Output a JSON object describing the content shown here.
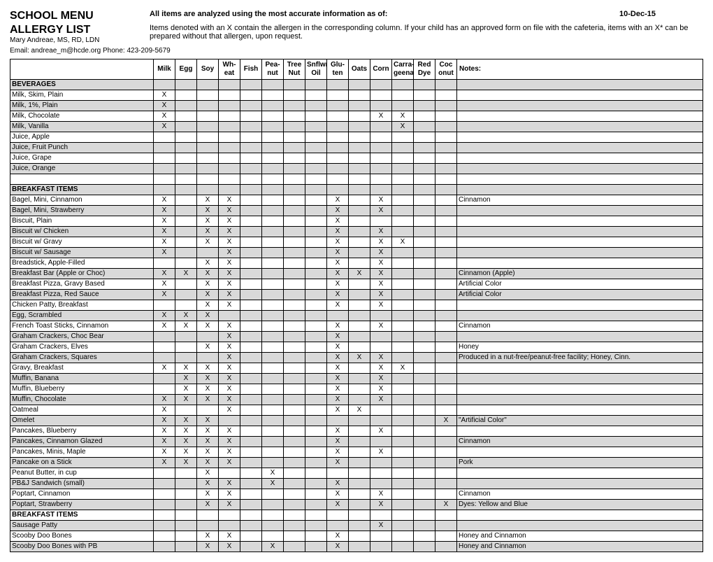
{
  "header": {
    "title1": "SCHOOL MENU",
    "title2": "ALLERGY LIST",
    "info_label": "All items are analyzed using the most accurate information as of:",
    "info_date": "10-Dec-15",
    "info_detail": "Items denoted with an X contain the allergen in the corresponding column. If your child has an approved form on file with the cafeteria, items with an X* can be prepared without that allergen, upon request.",
    "contact": "Mary Andreae, MS, RD, LDN",
    "email": "Email: andreae_m@hcde.org Phone: 423-209-5679"
  },
  "columns": [
    "Milk",
    "Egg",
    "Soy",
    "Wh-\neat",
    "Fish",
    "Pea-\nnut",
    "Tree\nNut",
    "Snflwr\nOil",
    "Glu-\nten",
    "Oats",
    "Corn",
    "Carra-\ngeenan",
    "Red\nDye",
    "Coc\nonut",
    "Notes:"
  ],
  "rows": [
    {
      "type": "section",
      "shaded": true,
      "name": "BEVERAGES"
    },
    {
      "shaded": false,
      "name": "Milk, Skim, Plain",
      "x": {
        "0": "X"
      }
    },
    {
      "shaded": true,
      "name": "Milk, 1%, Plain",
      "x": {
        "0": "X"
      }
    },
    {
      "shaded": false,
      "name": "Milk, Chocolate",
      "x": {
        "0": "X",
        "10": "X",
        "11": "X"
      }
    },
    {
      "shaded": true,
      "name": "Milk, Vanilla",
      "x": {
        "0": "X",
        "11": "X"
      }
    },
    {
      "shaded": false,
      "name": "Juice, Apple"
    },
    {
      "shaded": true,
      "name": "Juice, Fruit Punch"
    },
    {
      "shaded": false,
      "name": "Juice, Grape"
    },
    {
      "shaded": true,
      "name": "Juice, Orange"
    },
    {
      "shaded": false,
      "name": ""
    },
    {
      "type": "section",
      "shaded": true,
      "name": "BREAKFAST ITEMS"
    },
    {
      "shaded": false,
      "name": "Bagel, Mini, Cinnamon",
      "x": {
        "0": "X",
        "2": "X",
        "3": "X",
        "8": "X",
        "10": "X"
      },
      "notes": "Cinnamon"
    },
    {
      "shaded": true,
      "name": "Bagel, Mini, Strawberry",
      "x": {
        "0": "X",
        "2": "X",
        "3": "X",
        "8": "X",
        "10": "X"
      }
    },
    {
      "shaded": false,
      "name": "Biscuit, Plain",
      "x": {
        "0": "X",
        "2": "X",
        "3": "X",
        "8": "X"
      }
    },
    {
      "shaded": true,
      "name": "Biscuit w/ Chicken",
      "x": {
        "0": "X",
        "2": "X",
        "3": "X",
        "8": "X",
        "10": "X"
      }
    },
    {
      "shaded": false,
      "name": "Biscuit w/ Gravy",
      "x": {
        "0": "X",
        "2": "X",
        "3": "X",
        "8": "X",
        "10": "X",
        "11": "X"
      }
    },
    {
      "shaded": true,
      "name": "Biscuit w/ Sausage",
      "x": {
        "0": "X",
        "3": "X",
        "8": "X",
        "10": "X"
      }
    },
    {
      "shaded": false,
      "name": "Breadstick, Apple-Filled",
      "x": {
        "2": "X",
        "3": "X",
        "8": "X",
        "10": "X"
      }
    },
    {
      "shaded": true,
      "name": "Breakfast Bar (Apple or Choc)",
      "x": {
        "0": "X",
        "1": "X",
        "2": "X",
        "3": "X",
        "8": "X",
        "9": "X",
        "10": "X"
      },
      "notes": "Cinnamon (Apple)"
    },
    {
      "shaded": false,
      "name": "Breakfast Pizza, Gravy Based",
      "x": {
        "0": "X",
        "2": "X",
        "3": "X",
        "8": "X",
        "10": "X"
      },
      "notes": "Artificial Color"
    },
    {
      "shaded": true,
      "name": "Breakfast Pizza, Red Sauce",
      "x": {
        "0": "X",
        "2": "X",
        "3": "X",
        "8": "X",
        "10": "X"
      },
      "notes": "Artificial Color"
    },
    {
      "shaded": false,
      "name": "Chicken Patty, Breakfast",
      "x": {
        "2": "X",
        "3": "X",
        "8": "X",
        "10": "X"
      }
    },
    {
      "shaded": true,
      "name": "Egg, Scrambled",
      "x": {
        "0": "X",
        "1": "X",
        "2": "X"
      }
    },
    {
      "shaded": false,
      "name": "French Toast Sticks, Cinnamon",
      "x": {
        "0": "X",
        "1": "X",
        "2": "X",
        "3": "X",
        "8": "X",
        "10": "X"
      },
      "notes": "Cinnamon"
    },
    {
      "shaded": true,
      "name": "Graham Crackers, Choc Bear",
      "x": {
        "3": "X",
        "8": "X"
      }
    },
    {
      "shaded": false,
      "name": "Graham Crackers, Elves",
      "x": {
        "2": "X",
        "3": "X",
        "8": "X"
      },
      "notes": "Honey"
    },
    {
      "shaded": true,
      "name": "Graham Crackers, Squares",
      "x": {
        "3": "X",
        "8": "X",
        "9": "X",
        "10": "X"
      },
      "notes": "Produced in a nut-free/peanut-free facility; Honey, Cinn."
    },
    {
      "shaded": false,
      "name": "Gravy, Breakfast",
      "x": {
        "0": "X",
        "1": "X",
        "2": "X",
        "3": "X",
        "8": "X",
        "10": "X",
        "11": "X"
      }
    },
    {
      "shaded": true,
      "name": "Muffin, Banana",
      "x": {
        "1": "X",
        "2": "X",
        "3": "X",
        "8": "X",
        "10": "X"
      }
    },
    {
      "shaded": false,
      "name": "Muffin, Blueberry",
      "x": {
        "1": "X",
        "2": "X",
        "3": "X",
        "8": "X",
        "10": "X"
      }
    },
    {
      "shaded": true,
      "name": "Muffin, Chocolate",
      "x": {
        "0": "X",
        "1": "X",
        "2": "X",
        "3": "X",
        "8": "X",
        "10": "X"
      }
    },
    {
      "shaded": false,
      "name": "Oatmeal",
      "x": {
        "0": "X",
        "3": "X",
        "8": "X",
        "9": "X"
      }
    },
    {
      "shaded": true,
      "name": "Omelet",
      "x": {
        "0": "X",
        "1": "X",
        "2": "X",
        "13": "X"
      },
      "notes": "\"Artificial Color\""
    },
    {
      "shaded": false,
      "name": "Pancakes, Blueberry",
      "x": {
        "0": "X",
        "1": "X",
        "2": "X",
        "3": "X",
        "8": "X",
        "10": "X"
      }
    },
    {
      "shaded": true,
      "name": "Pancakes, Cinnamon Glazed",
      "x": {
        "0": "X",
        "1": "X",
        "2": "X",
        "3": "X",
        "8": "X"
      },
      "notes": "Cinnamon"
    },
    {
      "shaded": false,
      "name": "Pancakes, Minis, Maple",
      "x": {
        "0": "X",
        "1": "X",
        "2": "X",
        "3": "X",
        "8": "X",
        "10": "X"
      }
    },
    {
      "shaded": true,
      "name": "Pancake on a Stick",
      "x": {
        "0": "X",
        "1": "X",
        "2": "X",
        "3": "X",
        "8": "X"
      },
      "notes": "Pork"
    },
    {
      "shaded": false,
      "name": "Peanut Butter, in cup",
      "x": {
        "2": "X",
        "5": "X"
      }
    },
    {
      "shaded": true,
      "name": "PB&J Sandwich (small)",
      "x": {
        "2": "X",
        "3": "X",
        "5": "X",
        "8": "X"
      }
    },
    {
      "shaded": false,
      "name": "Poptart, Cinnamon",
      "x": {
        "2": "X",
        "3": "X",
        "8": "X",
        "10": "X"
      },
      "notes": "Cinnamon"
    },
    {
      "shaded": true,
      "name": "Poptart, Strawberry",
      "x": {
        "2": "X",
        "3": "X",
        "8": "X",
        "10": "X",
        "13": "X"
      },
      "notes": "Dyes: Yellow and Blue"
    },
    {
      "type": "section",
      "shaded": false,
      "name": "BREAKFAST ITEMS"
    },
    {
      "shaded": true,
      "name": "Sausage Patty",
      "x": {
        "10": "X"
      }
    },
    {
      "shaded": false,
      "name": "Scooby Doo Bones",
      "x": {
        "2": "X",
        "3": "X",
        "8": "X"
      },
      "notes": "Honey and Cinnamon"
    },
    {
      "shaded": true,
      "name": "Scooby Doo Bones with PB",
      "x": {
        "2": "X",
        "3": "X",
        "5": "X",
        "8": "X"
      },
      "notes": "Honey and Cinnamon"
    }
  ]
}
